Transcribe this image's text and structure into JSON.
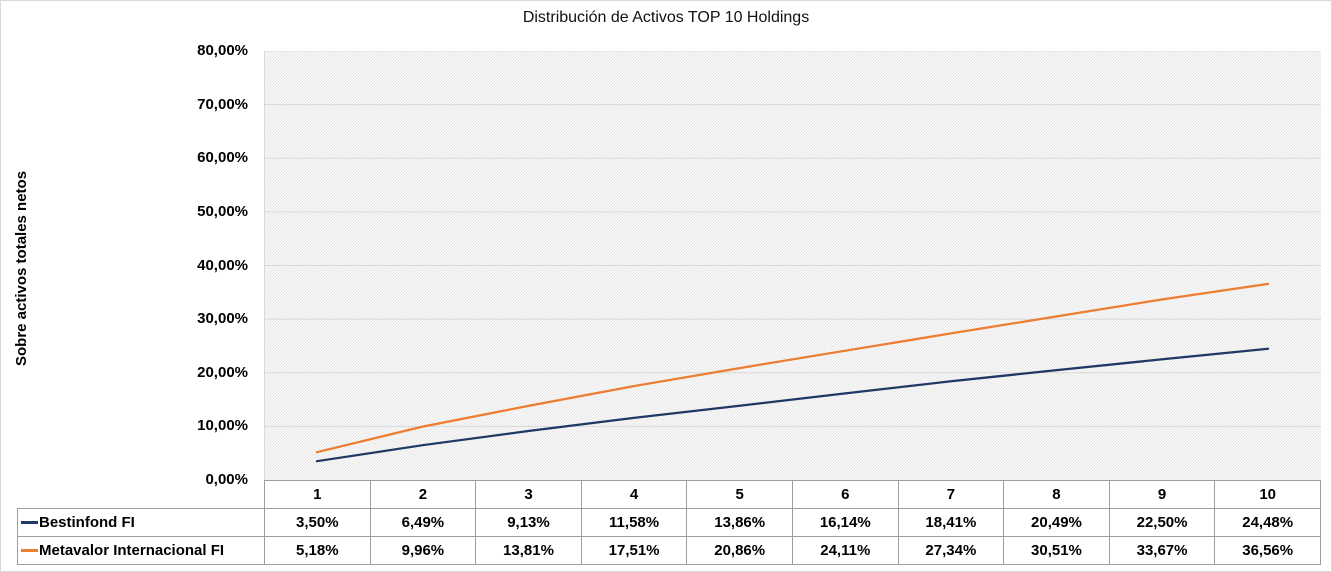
{
  "title": "Distribución de Activos TOP 10 Holdings",
  "y_axis": {
    "title": "Sobre activos totales netos",
    "tick_labels": [
      "0,00%",
      "10,00%",
      "20,00%",
      "30,00%",
      "40,00%",
      "50,00%",
      "60,00%",
      "70,00%",
      "80,00%"
    ]
  },
  "chart_data": {
    "type": "line",
    "title": "Distribución de Activos TOP 10 Holdings",
    "xlabel": "",
    "ylabel": "Sobre activos totales netos",
    "categories": [
      "1",
      "2",
      "3",
      "4",
      "5",
      "6",
      "7",
      "8",
      "9",
      "10"
    ],
    "ylim": [
      0,
      80
    ],
    "grid": true,
    "legend_position": "data-table-left",
    "plot_background": "diagonal-hatch",
    "series": [
      {
        "name": "Bestinfond FI",
        "color": "#1F3864",
        "values": [
          3.5,
          6.49,
          9.13,
          11.58,
          13.86,
          16.14,
          18.41,
          20.49,
          22.5,
          24.48
        ],
        "labels": [
          "3,50%",
          "6,49%",
          "9,13%",
          "11,58%",
          "13,86%",
          "16,14%",
          "18,41%",
          "20,49%",
          "22,50%",
          "24,48%"
        ]
      },
      {
        "name": "Metavalor Internacional FI",
        "color": "#ED7D31",
        "values": [
          5.18,
          9.96,
          13.81,
          17.51,
          20.86,
          24.11,
          27.34,
          30.51,
          33.67,
          36.56
        ],
        "labels": [
          "5,18%",
          "9,96%",
          "13,81%",
          "17,51%",
          "20,86%",
          "24,11%",
          "27,34%",
          "30,51%",
          "33,67%",
          "36,56%"
        ]
      }
    ]
  },
  "colors": {
    "gridline": "#D9D9D9",
    "axis_line": "#D9D9D9",
    "table_border": "#9E9E9E",
    "hatch_line": "#E3E3E3",
    "plot_background": "#FFFFFF"
  }
}
